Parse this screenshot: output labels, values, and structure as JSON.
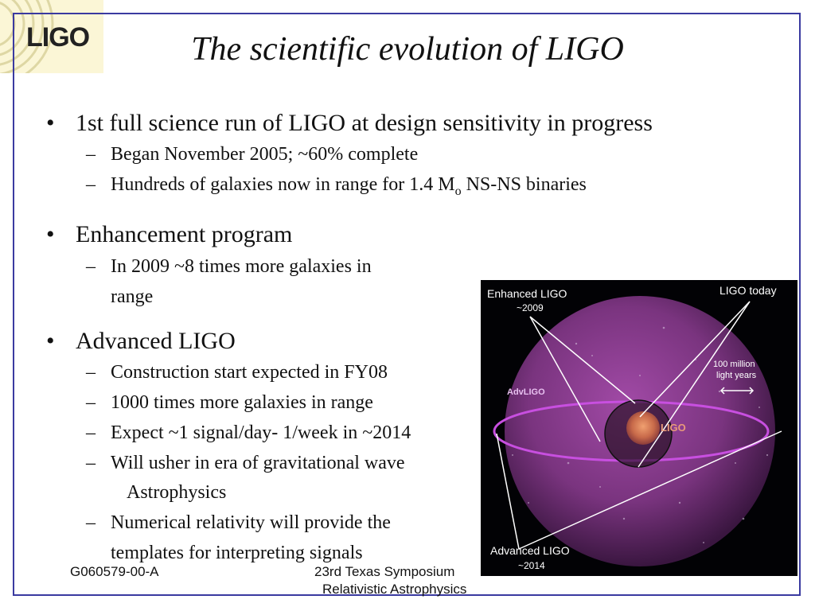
{
  "logo": {
    "text": "LIGO"
  },
  "title": "The scientific evolution of LIGO",
  "bullets": [
    {
      "text": "1st full science run of LIGO at design sensitivity in progress",
      "subs": [
        "Began November 2005; ~60% complete",
        {
          "before": "Hundreds of galaxies now in range for 1.4 M",
          "sub": "o",
          "after": " NS-NS binaries"
        }
      ]
    },
    {
      "text": "Enhancement program",
      "subs": [
        {
          "line1": "In 2009 ~8 times more galaxies in",
          "line2": "range"
        }
      ]
    },
    {
      "text": "Advanced LIGO",
      "subs": [
        "Construction start expected in FY08",
        "1000 times more galaxies in range",
        "Expect ~1 signal/day- 1/week in ~2014",
        {
          "line1": "Will usher in era of gravitational wave",
          "line2": "Astrophysics"
        },
        {
          "line1": "Numerical relativity will provide the",
          "line2": "templates for interpreting signals"
        }
      ]
    }
  ],
  "figure": {
    "enhanced": {
      "name": "Enhanced LIGO",
      "year": "~2009"
    },
    "today": "LIGO today",
    "scale": {
      "line1": "100 million",
      "line2": "light years"
    },
    "advanced": {
      "name": "Advanced LIGO",
      "year": "~2014"
    },
    "advligo_tag": "AdvLIGO",
    "ligo_tag": "LIGO",
    "colors": {
      "sphere": "#8a3d8f",
      "ring": "#c84fe0",
      "arrows": "#ffffff"
    }
  },
  "footer": {
    "doc_id": "G060579-00-A",
    "line1": "23rd Texas Symposium",
    "line2": "Relativistic Astrophysics"
  }
}
